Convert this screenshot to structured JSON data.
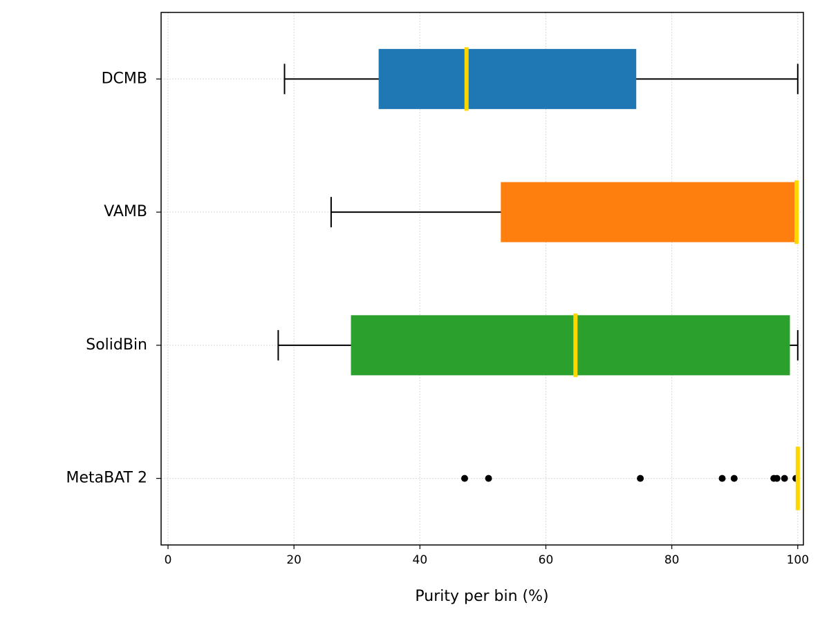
{
  "chart_data": {
    "type": "boxplot",
    "orientation": "horizontal",
    "x_label": "Purity per bin (%)",
    "categories": [
      "DCMB",
      "VAMB",
      "SolidBin",
      "MetaBAT 2"
    ],
    "boxes": [
      {
        "color": "#1f77b4",
        "whislo": 18.5,
        "q1": 33.5,
        "med": 47.4,
        "q3": 74.3,
        "whishi": 100,
        "fliers": []
      },
      {
        "color": "#ff7f0e",
        "whislo": 25.9,
        "q1": 52.9,
        "med": 99.8,
        "q3": 100,
        "whishi": 100,
        "fliers": []
      },
      {
        "color": "#2ca02c",
        "whislo": 17.5,
        "q1": 29.1,
        "med": 64.7,
        "q3": 98.7,
        "whishi": 100,
        "fliers": []
      },
      {
        "color": "#7f7f7f",
        "whislo": 100,
        "q1": 100,
        "med": 100,
        "q3": 100,
        "whishi": 100,
        "fliers": [
          47.1,
          50.9,
          75.0,
          88.0,
          89.9,
          96.2,
          96.7,
          97.9,
          99.7
        ]
      }
    ],
    "median_color": "#ffd700",
    "xlim": [
      -1.1,
      100.9
    ],
    "xticks": [
      0,
      20,
      40,
      60,
      80,
      100
    ],
    "grid": true
  }
}
